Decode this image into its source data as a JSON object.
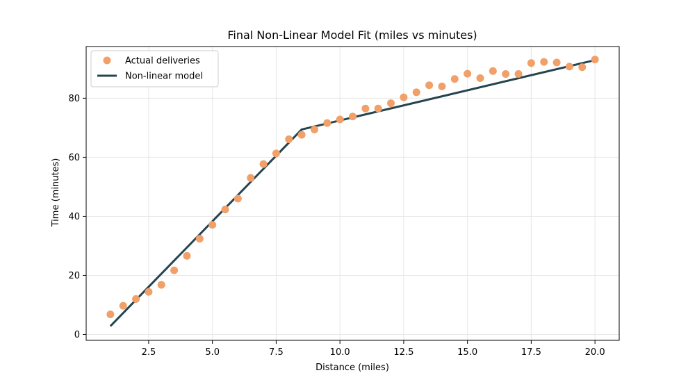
{
  "chart_data": {
    "type": "scatter",
    "title": "Final Non-Linear Model Fit (miles vs minutes)",
    "xlabel": "Distance (miles)",
    "ylabel": "Time (minutes)",
    "xlim": [
      0.05,
      20.95
    ],
    "ylim": [
      -2,
      97.5
    ],
    "xticks": [
      2.5,
      5.0,
      7.5,
      10.0,
      12.5,
      15.0,
      17.5,
      20.0
    ],
    "xtick_labels": [
      "2.5",
      "5.0",
      "7.5",
      "10.0",
      "12.5",
      "15.0",
      "17.5",
      "20.0"
    ],
    "yticks": [
      0,
      20,
      40,
      60,
      80
    ],
    "ytick_labels": [
      "0",
      "20",
      "40",
      "60",
      "80"
    ],
    "grid": true,
    "legend_position": "top-left",
    "colors": {
      "points": "#f0a068",
      "line": "#24444f",
      "grid": "#e6e6e6"
    },
    "series": [
      {
        "name": "Actual deliveries",
        "kind": "scatter",
        "x": [
          1.0,
          1.5,
          2.0,
          2.5,
          3.0,
          3.5,
          4.0,
          4.5,
          5.0,
          5.5,
          6.0,
          6.5,
          7.0,
          7.5,
          8.0,
          8.5,
          9.0,
          9.5,
          10.0,
          10.5,
          11.0,
          11.5,
          12.0,
          12.5,
          13.0,
          13.5,
          14.0,
          14.5,
          15.0,
          15.5,
          16.0,
          16.5,
          17.0,
          17.5,
          18.0,
          18.5,
          19.0,
          19.5,
          20.0
        ],
        "y": [
          6.8,
          9.7,
          12.0,
          14.4,
          16.8,
          21.7,
          26.6,
          32.4,
          37.1,
          42.3,
          46.0,
          53.0,
          57.7,
          61.3,
          66.1,
          67.6,
          69.4,
          71.6,
          72.8,
          73.8,
          76.5,
          76.5,
          78.3,
          80.3,
          82.0,
          84.4,
          84.0,
          86.5,
          88.3,
          86.8,
          89.2,
          88.2,
          88.2,
          91.9,
          92.3,
          92.1,
          90.7,
          90.5,
          93.1
        ]
      },
      {
        "name": "Non-linear model",
        "kind": "line",
        "x": [
          1.0,
          8.5,
          20.0
        ],
        "y": [
          2.8,
          69.4,
          92.9
        ]
      }
    ]
  }
}
